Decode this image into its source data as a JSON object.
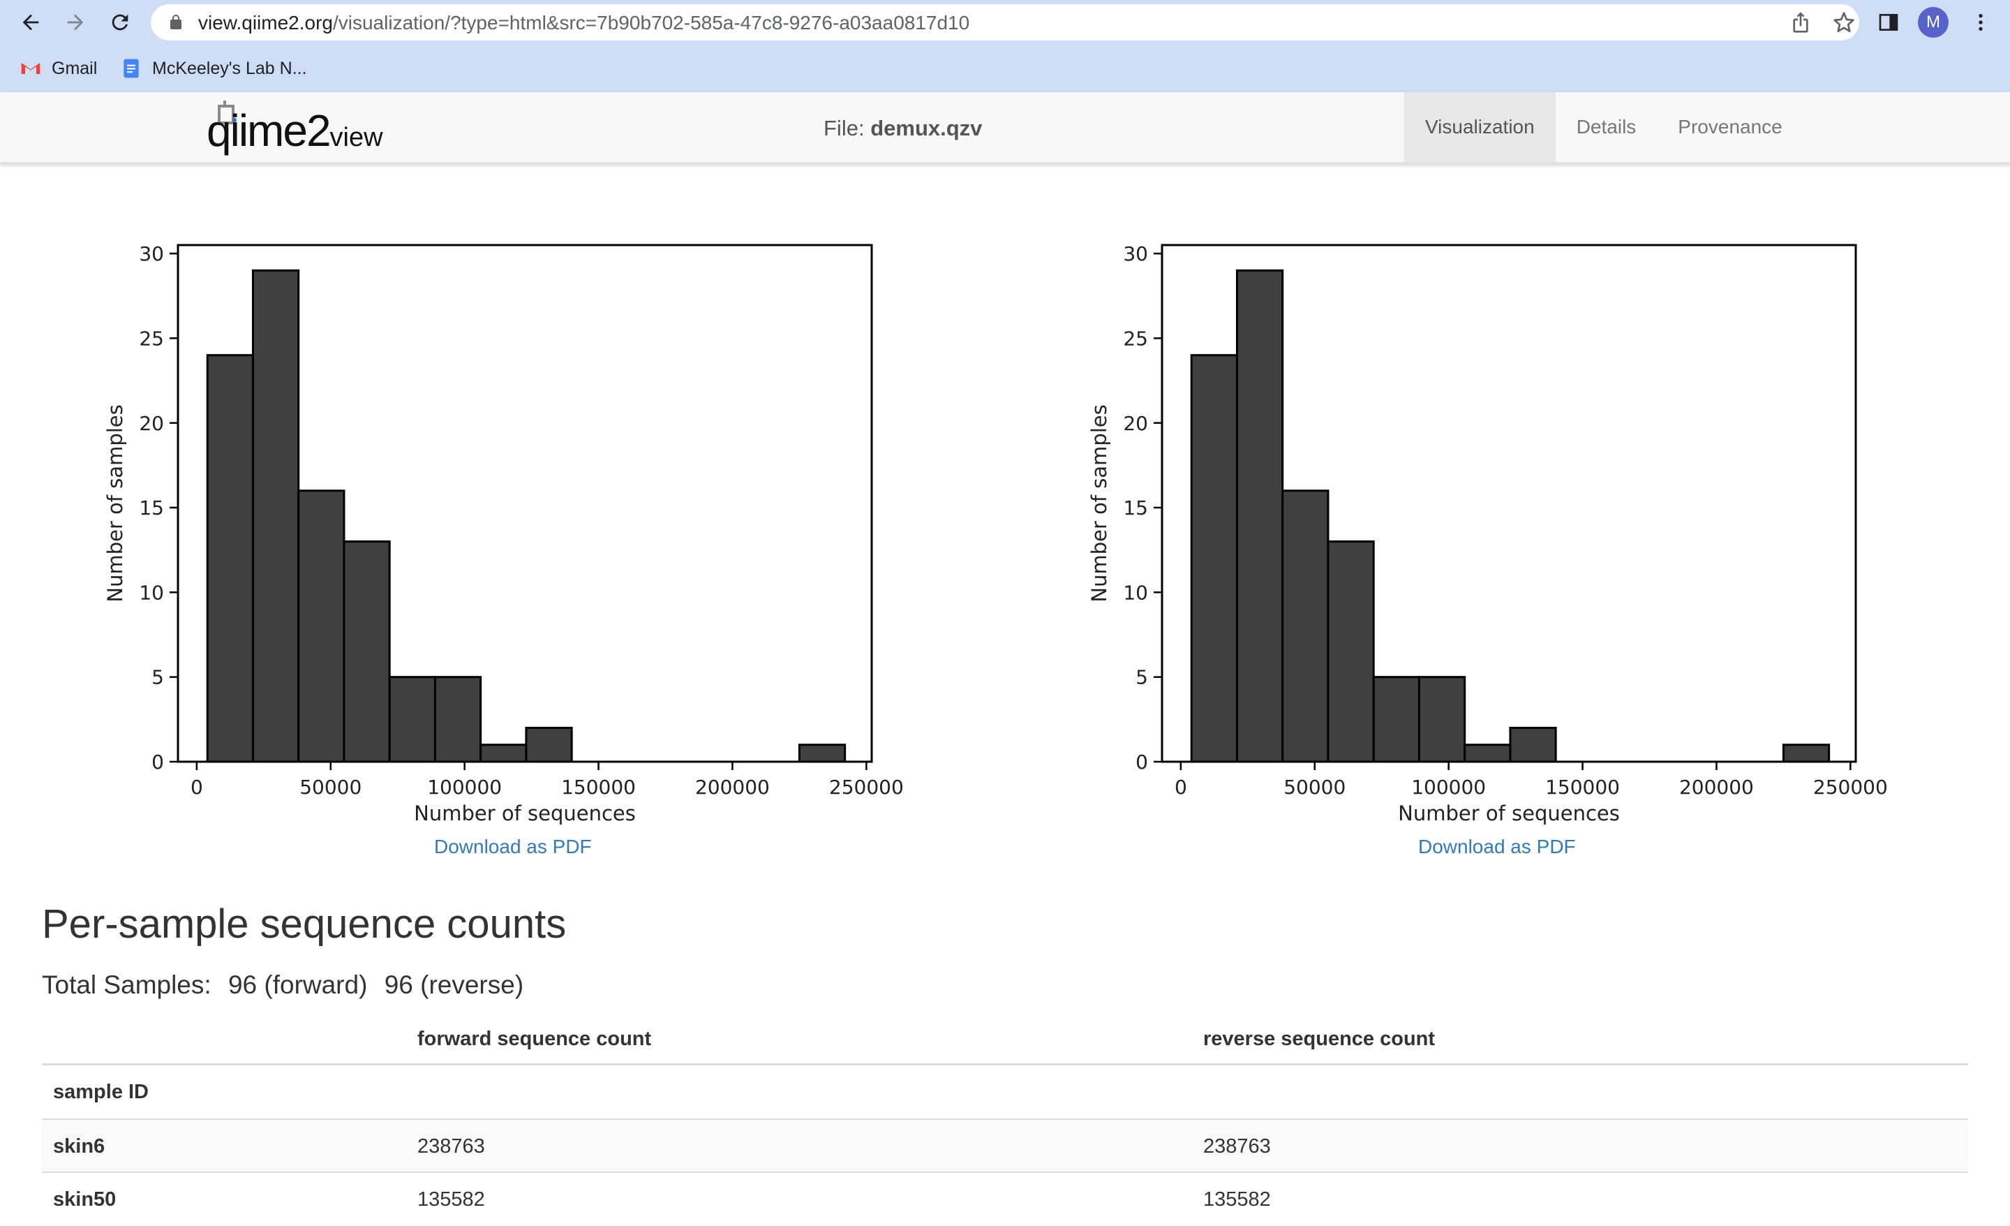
{
  "browser": {
    "url_host": "view.qiime2.org",
    "url_path": "/visualization/?type=html&src=7b90b702-585a-47c8-9276-a03aa0817d10",
    "avatar_letter": "M",
    "bookmarks": [
      {
        "label": "Gmail",
        "icon": "gmail-icon"
      },
      {
        "label": "McKeeley's Lab N...",
        "icon": "docs-icon"
      }
    ]
  },
  "app": {
    "logo_main": "qiime2",
    "logo_sub": "view",
    "file_prefix": "File:",
    "file_name": "demux.qzv",
    "tabs": [
      {
        "label": "Visualization",
        "active": true
      },
      {
        "label": "Details",
        "active": false
      },
      {
        "label": "Provenance",
        "active": false
      }
    ]
  },
  "charts": [
    {
      "download_label": "Download as PDF"
    },
    {
      "download_label": "Download as PDF"
    }
  ],
  "chart_data": [
    {
      "type": "bar",
      "xlabel": "Number of sequences",
      "ylabel": "Number of samples",
      "bin_edges": [
        4000,
        21000,
        38000,
        55000,
        72000,
        89000,
        106000,
        123000,
        140000,
        157000,
        174000,
        191000,
        208000,
        225000,
        242000
      ],
      "values": [
        24,
        29,
        16,
        13,
        5,
        5,
        1,
        2,
        0,
        0,
        0,
        0,
        0,
        1
      ],
      "xlim": [
        -7000,
        252000
      ],
      "ylim": [
        0,
        30.5
      ],
      "xticks": [
        0,
        50000,
        100000,
        150000,
        200000,
        250000
      ],
      "yticks": [
        0,
        5,
        10,
        15,
        20,
        25,
        30
      ],
      "bar_color": "#404040",
      "grid": false
    },
    {
      "type": "bar",
      "xlabel": "Number of sequences",
      "ylabel": "Number of samples",
      "bin_edges": [
        4000,
        21000,
        38000,
        55000,
        72000,
        89000,
        106000,
        123000,
        140000,
        157000,
        174000,
        191000,
        208000,
        225000,
        242000
      ],
      "values": [
        24,
        29,
        16,
        13,
        5,
        5,
        1,
        2,
        0,
        0,
        0,
        0,
        0,
        1
      ],
      "xlim": [
        -7000,
        252000
      ],
      "ylim": [
        0,
        30.5
      ],
      "xticks": [
        0,
        50000,
        100000,
        150000,
        200000,
        250000
      ],
      "yticks": [
        0,
        5,
        10,
        15,
        20,
        25,
        30
      ],
      "bar_color": "#404040",
      "grid": false
    }
  ],
  "section": {
    "title": "Per-sample sequence counts",
    "totals_label": "Total Samples:",
    "totals_forward": "96 (forward)",
    "totals_reverse": "96 (reverse)"
  },
  "table": {
    "col_forward": "forward sequence count",
    "col_reverse": "reverse sequence count",
    "index_label": "sample ID",
    "rows": [
      {
        "id": "skin6",
        "forward": "238763",
        "reverse": "238763"
      },
      {
        "id": "skin50",
        "forward": "135582",
        "reverse": "135582"
      }
    ]
  },
  "colors": {
    "chrome_bg": "#cfdcf5",
    "link": "#337ab7",
    "header_bg": "#f8f8f8",
    "active_tab_bg": "#e7e7e7"
  }
}
